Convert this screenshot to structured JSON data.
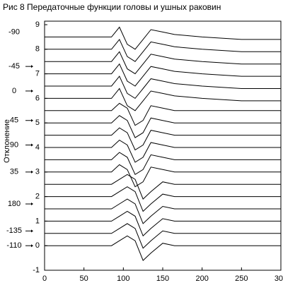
{
  "chart_data": {
    "type": "waterfall",
    "title": "Рис 8 Передаточные функции головы и ушных раковин",
    "y_label": "Отклонение",
    "color": "#000000",
    "xlim": [
      0,
      300
    ],
    "xticks": [
      0,
      50,
      100,
      150,
      200,
      250,
      300
    ],
    "ylim": [
      -1,
      9
    ],
    "yticks": [
      -1,
      0,
      1,
      2,
      3,
      4,
      5,
      6,
      7,
      8,
      9
    ],
    "annotations": [
      {
        "text": "-90",
        "y": 8.7,
        "arrow": false
      },
      {
        "text": "-45",
        "y": 7.3,
        "arrow": true
      },
      {
        "text": "0",
        "y": 6.3,
        "arrow": true
      },
      {
        "text": "45",
        "y": 5.1,
        "arrow": true
      },
      {
        "text": "90",
        "y": 4.1,
        "arrow": true
      },
      {
        "text": "35",
        "y": 3,
        "arrow": true
      },
      {
        "text": "180",
        "y": 1.7,
        "arrow": true
      },
      {
        "text": "-135",
        "y": 0.6,
        "arrow": true
      },
      {
        "text": "-110",
        "y": 0,
        "arrow": true
      }
    ],
    "x": [
      0,
      85,
      95,
      105,
      115,
      125,
      135,
      150,
      165,
      200,
      250,
      300
    ],
    "series": [
      {
        "values": [
          8.5,
          8.5,
          8.9,
          8.2,
          8,
          8.4,
          8.8,
          8.7,
          8.6,
          8.5,
          8.4,
          8.4
        ]
      },
      {
        "values": [
          8,
          8,
          8.4,
          7.7,
          7.5,
          7.9,
          8.3,
          8.2,
          8.1,
          8,
          7.9,
          7.9
        ]
      },
      {
        "values": [
          7.5,
          7.5,
          7.9,
          7.2,
          7,
          7.4,
          7.8,
          7.7,
          7.6,
          7.5,
          7.4,
          7.4
        ]
      },
      {
        "values": [
          7,
          7,
          7.4,
          6.7,
          6.5,
          6.9,
          7.3,
          7.2,
          7.1,
          7,
          6.9,
          6.9
        ]
      },
      {
        "values": [
          6.5,
          6.5,
          6.9,
          6.2,
          6,
          6.4,
          6.8,
          6.7,
          6.6,
          6.5,
          6.4,
          6.4
        ]
      },
      {
        "values": [
          6,
          6,
          6.4,
          5.7,
          5.5,
          5.9,
          6.3,
          6.2,
          6.1,
          6,
          5.9,
          5.9
        ]
      },
      {
        "values": [
          5.5,
          5.5,
          5.8,
          5.6,
          4.9,
          5.1,
          5.7,
          5.6,
          5.5,
          5.5,
          5.5,
          5.5
        ]
      },
      {
        "values": [
          5,
          5,
          5.3,
          5.1,
          4.4,
          4.6,
          5.2,
          5.1,
          5,
          5,
          5,
          5
        ]
      },
      {
        "values": [
          4.5,
          4.5,
          4.8,
          4.6,
          3.9,
          4.1,
          4.7,
          4.6,
          4.5,
          4.5,
          4.5,
          4.5
        ]
      },
      {
        "values": [
          4,
          4,
          4.3,
          4.1,
          3.4,
          3.6,
          4.2,
          4.1,
          4,
          4,
          4,
          4
        ]
      },
      {
        "values": [
          3.5,
          3.5,
          3.8,
          3.6,
          2.9,
          3.1,
          3.7,
          3.6,
          3.5,
          3.5,
          3.5,
          3.5
        ]
      },
      {
        "values": [
          3,
          3,
          3.3,
          3.1,
          2.4,
          2.6,
          3.2,
          3.1,
          3,
          3,
          3,
          3
        ]
      },
      {
        "values": [
          2.5,
          2.5,
          2.7,
          2.9,
          2.7,
          1.9,
          2.2,
          2.6,
          2.5,
          2.5,
          2.5,
          2.5
        ]
      },
      {
        "values": [
          2,
          2,
          2.2,
          2.4,
          2.2,
          1.4,
          1.7,
          2.1,
          2,
          2,
          2,
          2
        ]
      },
      {
        "values": [
          1.5,
          1.5,
          1.7,
          1.9,
          1.7,
          0.9,
          1.2,
          1.6,
          1.5,
          1.5,
          1.5,
          1.5
        ]
      },
      {
        "values": [
          1,
          1,
          1.2,
          1.4,
          1.2,
          0.4,
          0.7,
          1.1,
          1,
          1,
          1,
          1
        ]
      },
      {
        "values": [
          0.5,
          0.5,
          0.7,
          0.9,
          0.7,
          -0.1,
          0.2,
          0.6,
          0.5,
          0.5,
          0.5,
          0.5
        ]
      },
      {
        "values": [
          0,
          0,
          0.2,
          0.4,
          0.2,
          -0.6,
          -0.3,
          0.1,
          0,
          0,
          0,
          0
        ]
      }
    ]
  }
}
